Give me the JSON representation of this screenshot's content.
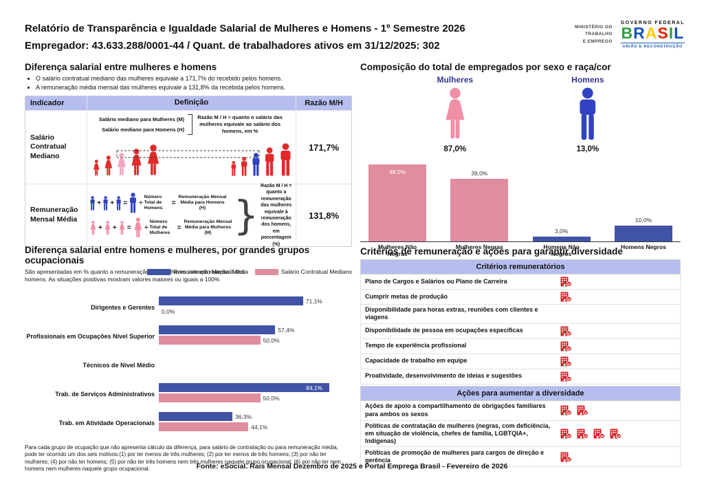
{
  "header": {
    "title_line1": "Relatório de Transparência e Igualdade Salarial de Mulheres e Homens - 1º Semestre 2026",
    "title_line2": "Empregador: 43.633.288/0001-44 / Quant. de trabalhadores ativos em 31/12/2025: 302",
    "logo": {
      "ministry_lines": [
        "MINISTÉRIO DO",
        "TRABALHO",
        "E EMPREGO"
      ],
      "gov_federal": "GOVERNO FEDERAL",
      "brand": "BRASIL",
      "tagline": "UNIÃO E RECONSTRUÇÃO"
    }
  },
  "salary_gap": {
    "title": "Diferença salarial entre mulheres e homens",
    "bullets": [
      "O salário contratual mediano das mulheres equivale a 171,7% do recebido pelos homens.",
      "A remuneração média mensal das mulheres equivale a 131,8% da recebida pelos homens."
    ],
    "table_headers": [
      "Indicador",
      "Definição",
      "Razão M/H"
    ],
    "row1": {
      "indicator": "Salário Contratual Mediano",
      "line_women": "Salário mediano para Mulheres (M)",
      "line_men": "Salário mediano para Homens (H)",
      "note": "Razão M / H = quanto o salário das mulheres equivale ao salário dos homens, em %",
      "ratio": "171,7%"
    },
    "row2": {
      "indicator": "Remuneração Mensal Média",
      "men_divisor": "Número Total de Homens",
      "men_result": "Remuneração Mensal Média para Homens (H)",
      "women_divisor": "Número Total de Mulheres",
      "women_result": "Remuneração Mensal Média para Mulheres (M)",
      "note": "Razão M / H = quanto a remuneração das mulheres equivale à remuneração dos homens, em porcentagem (%)",
      "ratio": "131,8%"
    }
  },
  "composition": {
    "title": "Composição do total de empregados por sexo e raça/cor",
    "female_label": "Mulheres",
    "female_value": "87,0%",
    "male_label": "Homens",
    "male_value": "13,0%"
  },
  "occupation_gap": {
    "title": "Diferença salarial entre homens e mulheres, por grandes grupos ocupacionais",
    "subtitle": "São apresentadas em % quanto a remuneração das mulheres vale em relação à dos homens. As situações positivas mostram valores maiores ou iguais a 100%",
    "legend": [
      "Remuneração Mensal Média",
      "Salário Contratual Mediano"
    ],
    "footnote": "Para cada grupo de ocupação que não apresenta cálculo da diferença, para salário de contratação ou para remuneração média, pode ter ocorrido um dos seis motivos:(1) por ter menos de três mulheres; (2) por ter menos de três homens; (3) por não ter mulheres; (4) por não ter homens; (5) por não ter três homens nem três mulheres naquele grupo ocupacional; (6) por não ter nem homens nem mulheres naquele grupo ocupacional."
  },
  "criteria": {
    "title": "Critérios de remuneração e ações para garantir diversidade",
    "remuneration_header": "Critérios remuneratórios",
    "remuneration_rows": [
      {
        "label": "Plano de Cargos e Salários ou Plano de Carreira",
        "icons": 1
      },
      {
        "label": "Cumprir metas de produção",
        "icons": 1
      },
      {
        "label": "Disponibilidade para horas extras, reuniões com clientes e viagens",
        "icons": 0
      },
      {
        "label": "Disponibilidade de pessoa em ocupações específicas",
        "icons": 1
      },
      {
        "label": "Tempo de experiência profissional",
        "icons": 1
      },
      {
        "label": "Capacidade de trabalho em equipe",
        "icons": 1
      },
      {
        "label": "Proatividade, desenvolvimento de ideias e sugestões",
        "icons": 1
      }
    ],
    "diversity_header": "Ações para aumentar a diversidade",
    "diversity_rows": [
      {
        "label": "Ações de apoio a compartilhamento de obrigações familiares para ambos os sexos",
        "icons": 2
      },
      {
        "label": "Políticas de contratação de mulheres (negras, com deficiência, em situação de violência, chefes de família, LGBTQIA+, Indígenas)",
        "icons": 4
      },
      {
        "label": "Políticas de promoção de mulheres para cargos de direção e gerência",
        "icons": 1
      }
    ]
  },
  "footer": "Fonte: eSocial. Rais Mensal Dezembro de 2025 e Portal Emprega Brasil - Fevereiro de 2026",
  "colors": {
    "lavender_band": "#b6bef0",
    "bar_blue": "#4053a4",
    "bar_pink": "#e08da0",
    "icon_red": "#e02b2b",
    "icon_pink": "#ef8fa6",
    "icon_blue": "#3143c0",
    "navy_text": "#33348e",
    "building_red": "#d8232a"
  },
  "chart_data": [
    {
      "id": "composition_by_race",
      "type": "bar",
      "title": "Composição do total de empregados por sexo e raça/cor",
      "categories": [
        "Mulheres Não Negras",
        "Mulheres Negras",
        "Homens Não Negros",
        "Homens Negros"
      ],
      "values": [
        48.0,
        39.0,
        3.0,
        10.0
      ],
      "value_labels": [
        "48,0%",
        "39,0%",
        "3,0%",
        "10,0%"
      ],
      "colors": [
        "#e08da0",
        "#e08da0",
        "#4053a4",
        "#4053a4"
      ],
      "label_inside": [
        true,
        false,
        false,
        false
      ],
      "ylim": [
        0,
        52
      ],
      "grid": false,
      "legend": "none"
    },
    {
      "id": "gap_by_occupation",
      "type": "bar",
      "orientation": "horizontal",
      "title": "Diferença salarial entre homens e mulheres, por grandes grupos ocupacionais",
      "categories": [
        "Dirigentes e Gerentes",
        "Profissionais em Ocupações Nível Superior",
        "Técnicos de Nível Médio",
        "Trab. de Serviços Administrativos",
        "Trab. em Atividade Operacionais"
      ],
      "series": [
        {
          "name": "Remuneração Mensal Média",
          "color": "#4053a4",
          "values": [
            71.1,
            57.4,
            null,
            84.1,
            36.3
          ],
          "labels": [
            "71,1%",
            "57,4%",
            "",
            "84,1%",
            "36,3%"
          ],
          "inside": [
            false,
            false,
            false,
            true,
            false
          ]
        },
        {
          "name": "Salário Contratual Mediano",
          "color": "#e08da0",
          "values": [
            0.0,
            50.0,
            null,
            50.0,
            44.1
          ],
          "labels": [
            "0,0%",
            "50,0%",
            "",
            "50,0%",
            "44,1%"
          ],
          "inside": [
            false,
            false,
            false,
            false,
            false
          ]
        }
      ],
      "xlim": [
        0,
        100
      ],
      "grid": false,
      "legend_position": "top-right"
    }
  ]
}
